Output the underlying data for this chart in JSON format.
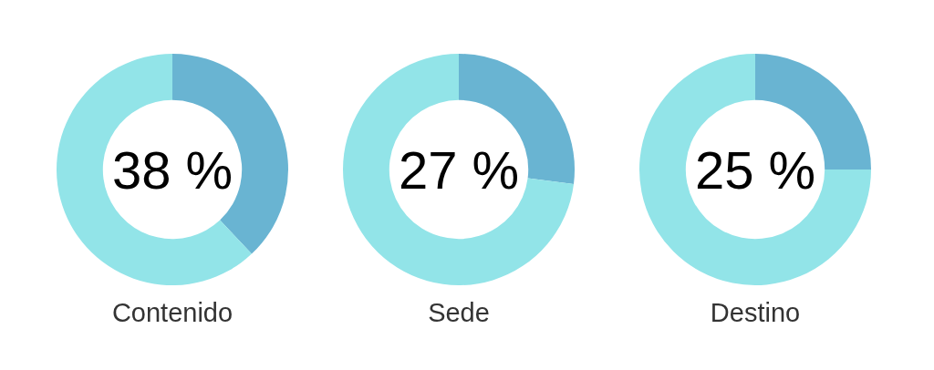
{
  "chart_data": [
    {
      "type": "donut",
      "title": "Contenido",
      "categories": [
        null,
        null
      ],
      "values": [
        38,
        62
      ],
      "colors": [
        "#69b4d2",
        "#92e4e8"
      ],
      "annotations": [
        "38 %"
      ]
    },
    {
      "type": "donut",
      "title": "Sede",
      "categories": [
        null,
        null
      ],
      "values": [
        27,
        73
      ],
      "colors": [
        "#69b4d2",
        "#92e4e8"
      ],
      "annotations": [
        "27 %"
      ]
    },
    {
      "type": "donut",
      "title": "Destino",
      "categories": [
        null,
        null
      ],
      "values": [
        25,
        75
      ],
      "colors": [
        "#69b4d2",
        "#92e4e8"
      ],
      "annotations": [
        "25 %"
      ]
    }
  ]
}
